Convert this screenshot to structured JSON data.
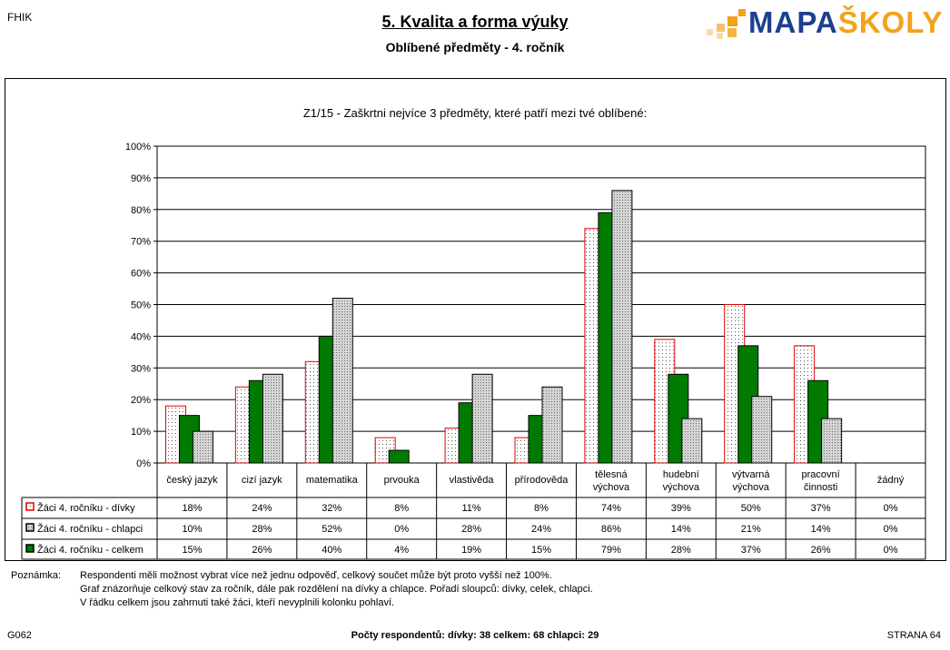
{
  "header": {
    "code": "FHIK",
    "title": "5. Kvalita a forma výuky",
    "subtitle": "Oblíbené předměty - 4. ročník",
    "logo_text_a": "MAPA",
    "logo_text_b": "ŠKOLY",
    "logo_colors": {
      "blue": "#1d3f8f",
      "orange": "#f2a21b"
    }
  },
  "chart_data": {
    "type": "bar",
    "title": "Z1/15 - Zaškrtni nejvíce 3 předměty, které patří mezi tvé oblíbené:",
    "categories": [
      [
        "český jazyk"
      ],
      [
        "cizí jazyk"
      ],
      [
        "matematika"
      ],
      [
        "prvouka"
      ],
      [
        "vlastivěda"
      ],
      [
        "přírodověda"
      ],
      [
        "tělesná",
        "výchova"
      ],
      [
        "hudební",
        "výchova"
      ],
      [
        "výtvarná",
        "výchova"
      ],
      [
        "pracovní",
        "činnosti"
      ],
      [
        "žádný"
      ]
    ],
    "ylim": [
      0,
      100
    ],
    "yticks": [
      "0%",
      "10%",
      "20%",
      "30%",
      "40%",
      "50%",
      "60%",
      "70%",
      "80%",
      "90%",
      "100%"
    ],
    "grid": true,
    "legend_placement": "data table below chart",
    "series": [
      {
        "name": "Žáci 4. ročníku - dívky",
        "style": "white dotted, red outline",
        "color": "#e00000",
        "values": [
          18,
          24,
          32,
          8,
          11,
          8,
          74,
          39,
          50,
          37,
          0
        ],
        "labels": [
          "18%",
          "24%",
          "32%",
          "8%",
          "11%",
          "8%",
          "74%",
          "39%",
          "50%",
          "37%",
          "0%"
        ]
      },
      {
        "name": "Žáci 4. ročníku - celkem",
        "style": "solid green",
        "color": "#007a00",
        "values": [
          15,
          26,
          40,
          4,
          19,
          15,
          79,
          28,
          37,
          26,
          0
        ],
        "labels": [
          "15%",
          "26%",
          "40%",
          "4%",
          "19%",
          "15%",
          "79%",
          "28%",
          "37%",
          "26%",
          "0%"
        ]
      },
      {
        "name": "Žáci 4. ročníku - chlapci",
        "style": "grey dotted, black outline",
        "color": "#c8c8c8",
        "values": [
          10,
          28,
          52,
          0,
          28,
          24,
          86,
          14,
          21,
          14,
          0
        ],
        "labels": [
          "10%",
          "28%",
          "52%",
          "0%",
          "28%",
          "24%",
          "86%",
          "14%",
          "21%",
          "14%",
          "0%"
        ]
      }
    ],
    "table_row_order": [
      0,
      2,
      1
    ]
  },
  "note": {
    "label": "Poznámka:",
    "lines": [
      "Respondenti měli možnost vybrat více než jednu odpověď, celkový součet může být proto vyšší než 100%.",
      "Graf znázorňuje celkový stav za ročník, dále pak rozdělení na dívky a chlapce. Pořadí sloupců: dívky, celek, chlapci.",
      "V řádku celkem jsou zahrnuti také žáci, kteří nevyplnili kolonku pohlaví."
    ]
  },
  "footer": {
    "code": "G062",
    "respondents": "Počty respondentů:    dívky: 38    celkem: 68    chlapci: 29",
    "page": "STRANA 64"
  }
}
